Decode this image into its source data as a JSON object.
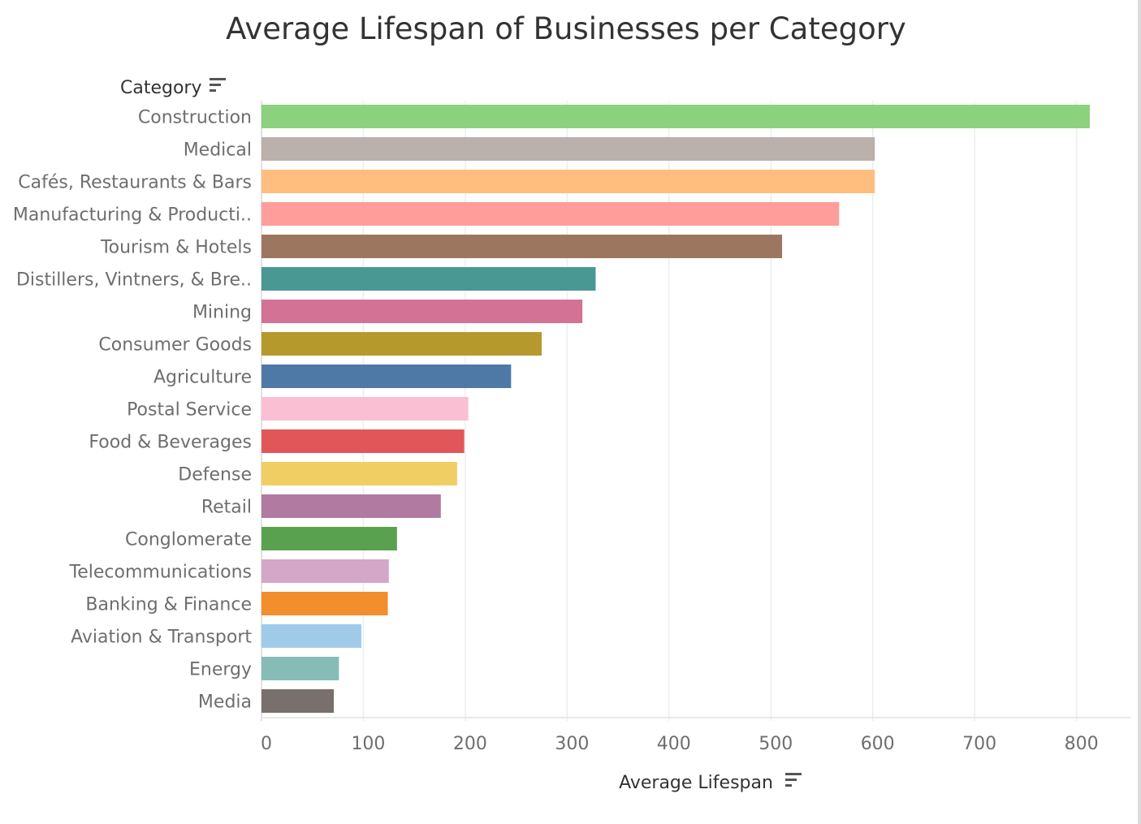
{
  "chart_data": {
    "type": "bar",
    "orientation": "horizontal",
    "title": "Average Lifespan of Businesses per Category",
    "ylabel": "Category",
    "xlabel": "Average Lifespan",
    "xlim": [
      0,
      850
    ],
    "xticks": [
      0,
      100,
      200,
      300,
      400,
      500,
      600,
      700,
      800
    ],
    "grid": true,
    "categories": [
      "Construction",
      "Medical",
      "Cafés, Restaurants & Bars",
      "Manufacturing & Producti..",
      "Tourism & Hotels",
      "Distillers, Vintners, & Bre..",
      "Mining",
      "Consumer Goods",
      "Agriculture",
      "Postal Service",
      "Food & Beverages",
      "Defense",
      "Retail",
      "Conglomerate",
      "Telecommunications",
      "Banking & Finance",
      "Aviation & Transport",
      "Energy",
      "Media"
    ],
    "values": [
      813,
      602,
      602,
      567,
      511,
      328,
      315,
      275,
      245,
      203,
      199,
      192,
      176,
      133,
      125,
      124,
      98,
      76,
      71
    ],
    "colors": [
      "#8cd17d",
      "#bab0ac",
      "#ffbe7d",
      "#ff9d9a",
      "#9d7660",
      "#499894",
      "#d37295",
      "#b6992d",
      "#4e79a7",
      "#fabfd2",
      "#e15759",
      "#f1ce63",
      "#b07aa1",
      "#59a14f",
      "#d4a6c8",
      "#f28e2b",
      "#a0cbe8",
      "#86bcb6",
      "#79706e"
    ]
  },
  "icons": {
    "category_sort": "sort-icon",
    "lifespan_sort": "sort-icon"
  }
}
